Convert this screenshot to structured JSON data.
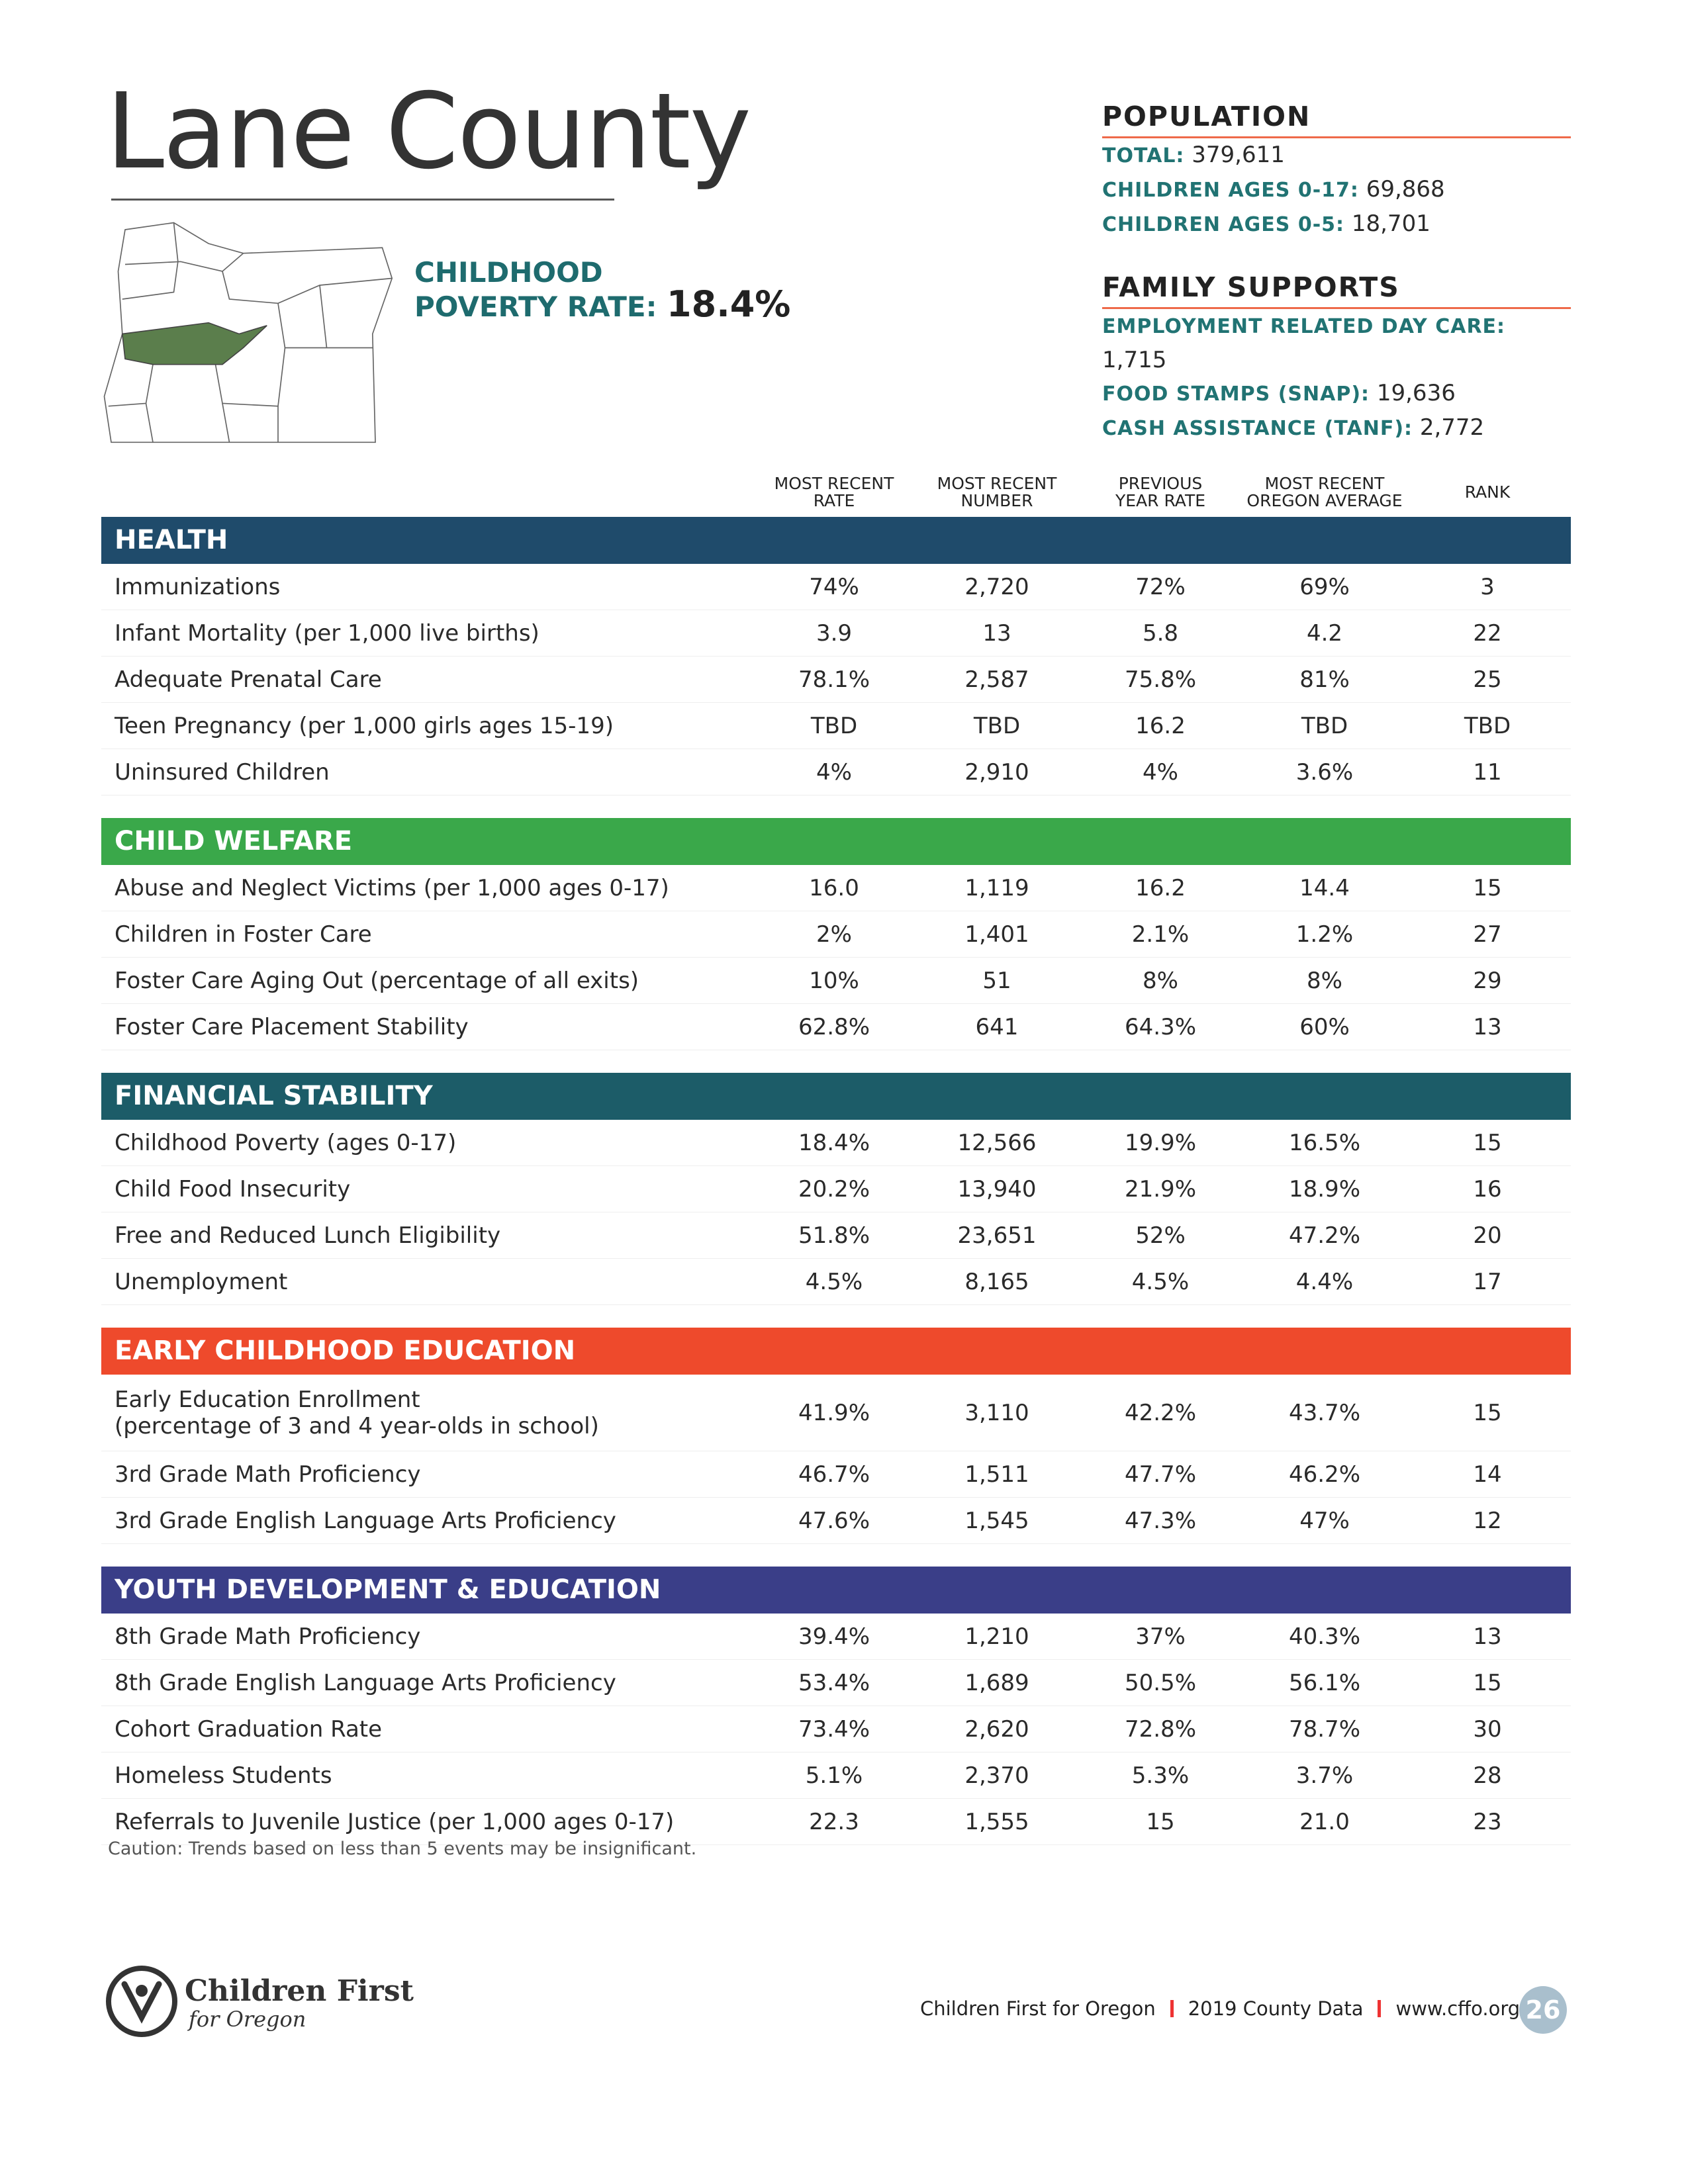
{
  "header": {
    "title": "Lane County"
  },
  "poverty": {
    "label": [
      "CHILDHOOD",
      "POVERTY RATE:"
    ],
    "value": "18.4%"
  },
  "population": {
    "heading": "POPULATION",
    "items": [
      {
        "label": "TOTAL:",
        "value": "379,611"
      },
      {
        "label": "CHILDREN AGES 0-17:",
        "value": "69,868"
      },
      {
        "label": "CHILDREN AGES 0-5:",
        "value": "18,701"
      }
    ]
  },
  "family_supports": {
    "heading": "FAMILY SUPPORTS",
    "items": [
      {
        "label": "EMPLOYMENT RELATED DAY CARE:",
        "value": "1,715"
      },
      {
        "label": "FOOD STAMPS (SNAP):",
        "value": "19,636"
      },
      {
        "label": "CASH ASSISTANCE (TANF):",
        "value": "2,772"
      }
    ]
  },
  "table": {
    "columns": [
      [
        "MOST RECENT",
        "RATE"
      ],
      [
        "MOST RECENT",
        "NUMBER"
      ],
      [
        "PREVIOUS",
        "YEAR RATE"
      ],
      [
        "MOST RECENT",
        "OREGON AVERAGE"
      ],
      [
        "RANK"
      ]
    ],
    "sections": [
      {
        "title": "HEALTH",
        "color": "#1f4b6b",
        "rows": [
          [
            "Immunizations",
            "74%",
            "2,720",
            "72%",
            "69%",
            "3"
          ],
          [
            "Infant Mortality (per 1,000 live births)",
            "3.9",
            "13",
            "5.8",
            "4.2",
            "22"
          ],
          [
            "Adequate Prenatal Care",
            "78.1%",
            "2,587",
            "75.8%",
            "81%",
            "25"
          ],
          [
            "Teen Pregnancy (per 1,000 girls ages 15-19)",
            "TBD",
            "TBD",
            "16.2",
            "TBD",
            "TBD"
          ],
          [
            "Uninsured Children",
            "4%",
            "2,910",
            "4%",
            "3.6%",
            "11"
          ]
        ]
      },
      {
        "title": "CHILD WELFARE",
        "color": "#3aa84a",
        "rows": [
          [
            "Abuse and Neglect Victims (per 1,000 ages 0-17)",
            "16.0",
            "1,119",
            "16.2",
            "14.4",
            "15"
          ],
          [
            "Children in Foster Care",
            "2%",
            "1,401",
            "2.1%",
            "1.2%",
            "27"
          ],
          [
            "Foster Care Aging Out (percentage of all exits)",
            "10%",
            "51",
            "8%",
            "8%",
            "29"
          ],
          [
            "Foster Care Placement Stability",
            "62.8%",
            "641",
            "64.3%",
            "60%",
            "13"
          ]
        ]
      },
      {
        "title": "FINANCIAL STABILITY",
        "color": "#1c5c68",
        "rows": [
          [
            "Childhood Poverty (ages 0-17)",
            "18.4%",
            "12,566",
            "19.9%",
            "16.5%",
            "15"
          ],
          [
            "Child Food Insecurity",
            "20.2%",
            "13,940",
            "21.9%",
            "18.9%",
            "16"
          ],
          [
            "Free and Reduced Lunch Eligibility",
            "51.8%",
            "23,651",
            "52%",
            "47.2%",
            "20"
          ],
          [
            "Unemployment",
            "4.5%",
            "8,165",
            "4.5%",
            "4.4%",
            "17"
          ]
        ]
      },
      {
        "title": "EARLY CHILDHOOD EDUCATION",
        "color": "#ee4a2c",
        "rows": [
          [
            "Early Education Enrollment\n(percentage of 3 and 4 year-olds in school)",
            "41.9%",
            "3,110",
            "42.2%",
            "43.7%",
            "15"
          ],
          [
            "3rd Grade Math Proficiency",
            "46.7%",
            "1,511",
            "47.7%",
            "46.2%",
            "14"
          ],
          [
            "3rd Grade English Language Arts Proficiency",
            "47.6%",
            "1,545",
            "47.3%",
            "47%",
            "12"
          ]
        ]
      },
      {
        "title": "YOUTH DEVELOPMENT & EDUCATION",
        "color": "#3a3e88",
        "rows": [
          [
            "8th Grade Math Proficiency",
            "39.4%",
            "1,210",
            "37%",
            "40.3%",
            "13"
          ],
          [
            "8th Grade English Language Arts Proficiency",
            "53.4%",
            "1,689",
            "50.5%",
            "56.1%",
            "15"
          ],
          [
            "Cohort Graduation Rate",
            "73.4%",
            "2,620",
            "72.8%",
            "78.7%",
            "30"
          ],
          [
            "Homeless Students",
            "5.1%",
            "2,370",
            "5.3%",
            "3.7%",
            "28"
          ],
          [
            "Referrals to Juvenile Justice (per 1,000 ages 0-17)",
            "22.3",
            "1,555",
            "15",
            "21.0",
            "23"
          ]
        ]
      }
    ]
  },
  "caution": "Caution: Trends based on less than 5 events may be insignificant.",
  "footer": {
    "logo": [
      "Children First",
      "for Oregon"
    ],
    "links": [
      "Children First for Oregon",
      "2019 County Data",
      "www.cffo.org"
    ],
    "page": "26"
  }
}
